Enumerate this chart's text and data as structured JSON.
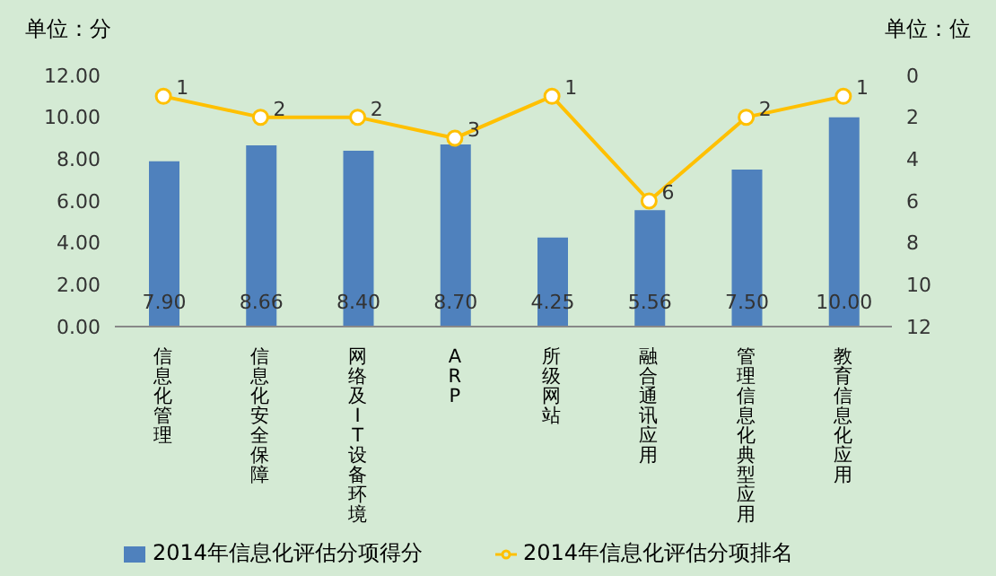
{
  "chart_data": {
    "type": "bar",
    "ylabel": "单位：分",
    "y2label": "单位：位",
    "categories": [
      "信息化管理",
      "信息化安全保障",
      "网络及IT设备环境",
      "ARP",
      "所级网站",
      "融合通讯应用",
      "管理信息化典型应用",
      "教育信息化应用"
    ],
    "series": [
      {
        "name": "2014年信息化评估分项得分",
        "color": "#4f81bd",
        "values": [
          7.9,
          8.66,
          8.4,
          8.7,
          4.25,
          5.56,
          7.5,
          10
        ],
        "value_labels": [
          "7.90",
          "8.66",
          "8.40",
          "8.70",
          "4.25",
          "5.56",
          "7.50",
          "10.00"
        ]
      },
      {
        "name": "2014年信息化评估分项排名",
        "type": "line",
        "axis": "y2",
        "color": "#ffc000",
        "marker": "circle",
        "values": [
          1,
          2,
          2,
          3,
          1,
          6,
          2,
          1
        ],
        "value_labels": [
          "1",
          "2",
          "2",
          "3",
          "1",
          "6",
          "2",
          "1"
        ]
      }
    ],
    "ylim": [
      0,
      12
    ],
    "yticks": [
      {
        "value": 0,
        "label": "0.00"
      },
      {
        "value": 2,
        "label": "2.00"
      },
      {
        "value": 4,
        "label": "4.00"
      },
      {
        "value": 6,
        "label": "6.00"
      },
      {
        "value": 8,
        "label": "8.00"
      },
      {
        "value": 10,
        "label": "10.00"
      },
      {
        "value": 12,
        "label": "12.00"
      }
    ],
    "y2lim": [
      12,
      0
    ],
    "y2ticks": [
      0,
      2,
      4,
      6,
      8,
      10,
      12
    ],
    "legend": "bottom"
  }
}
